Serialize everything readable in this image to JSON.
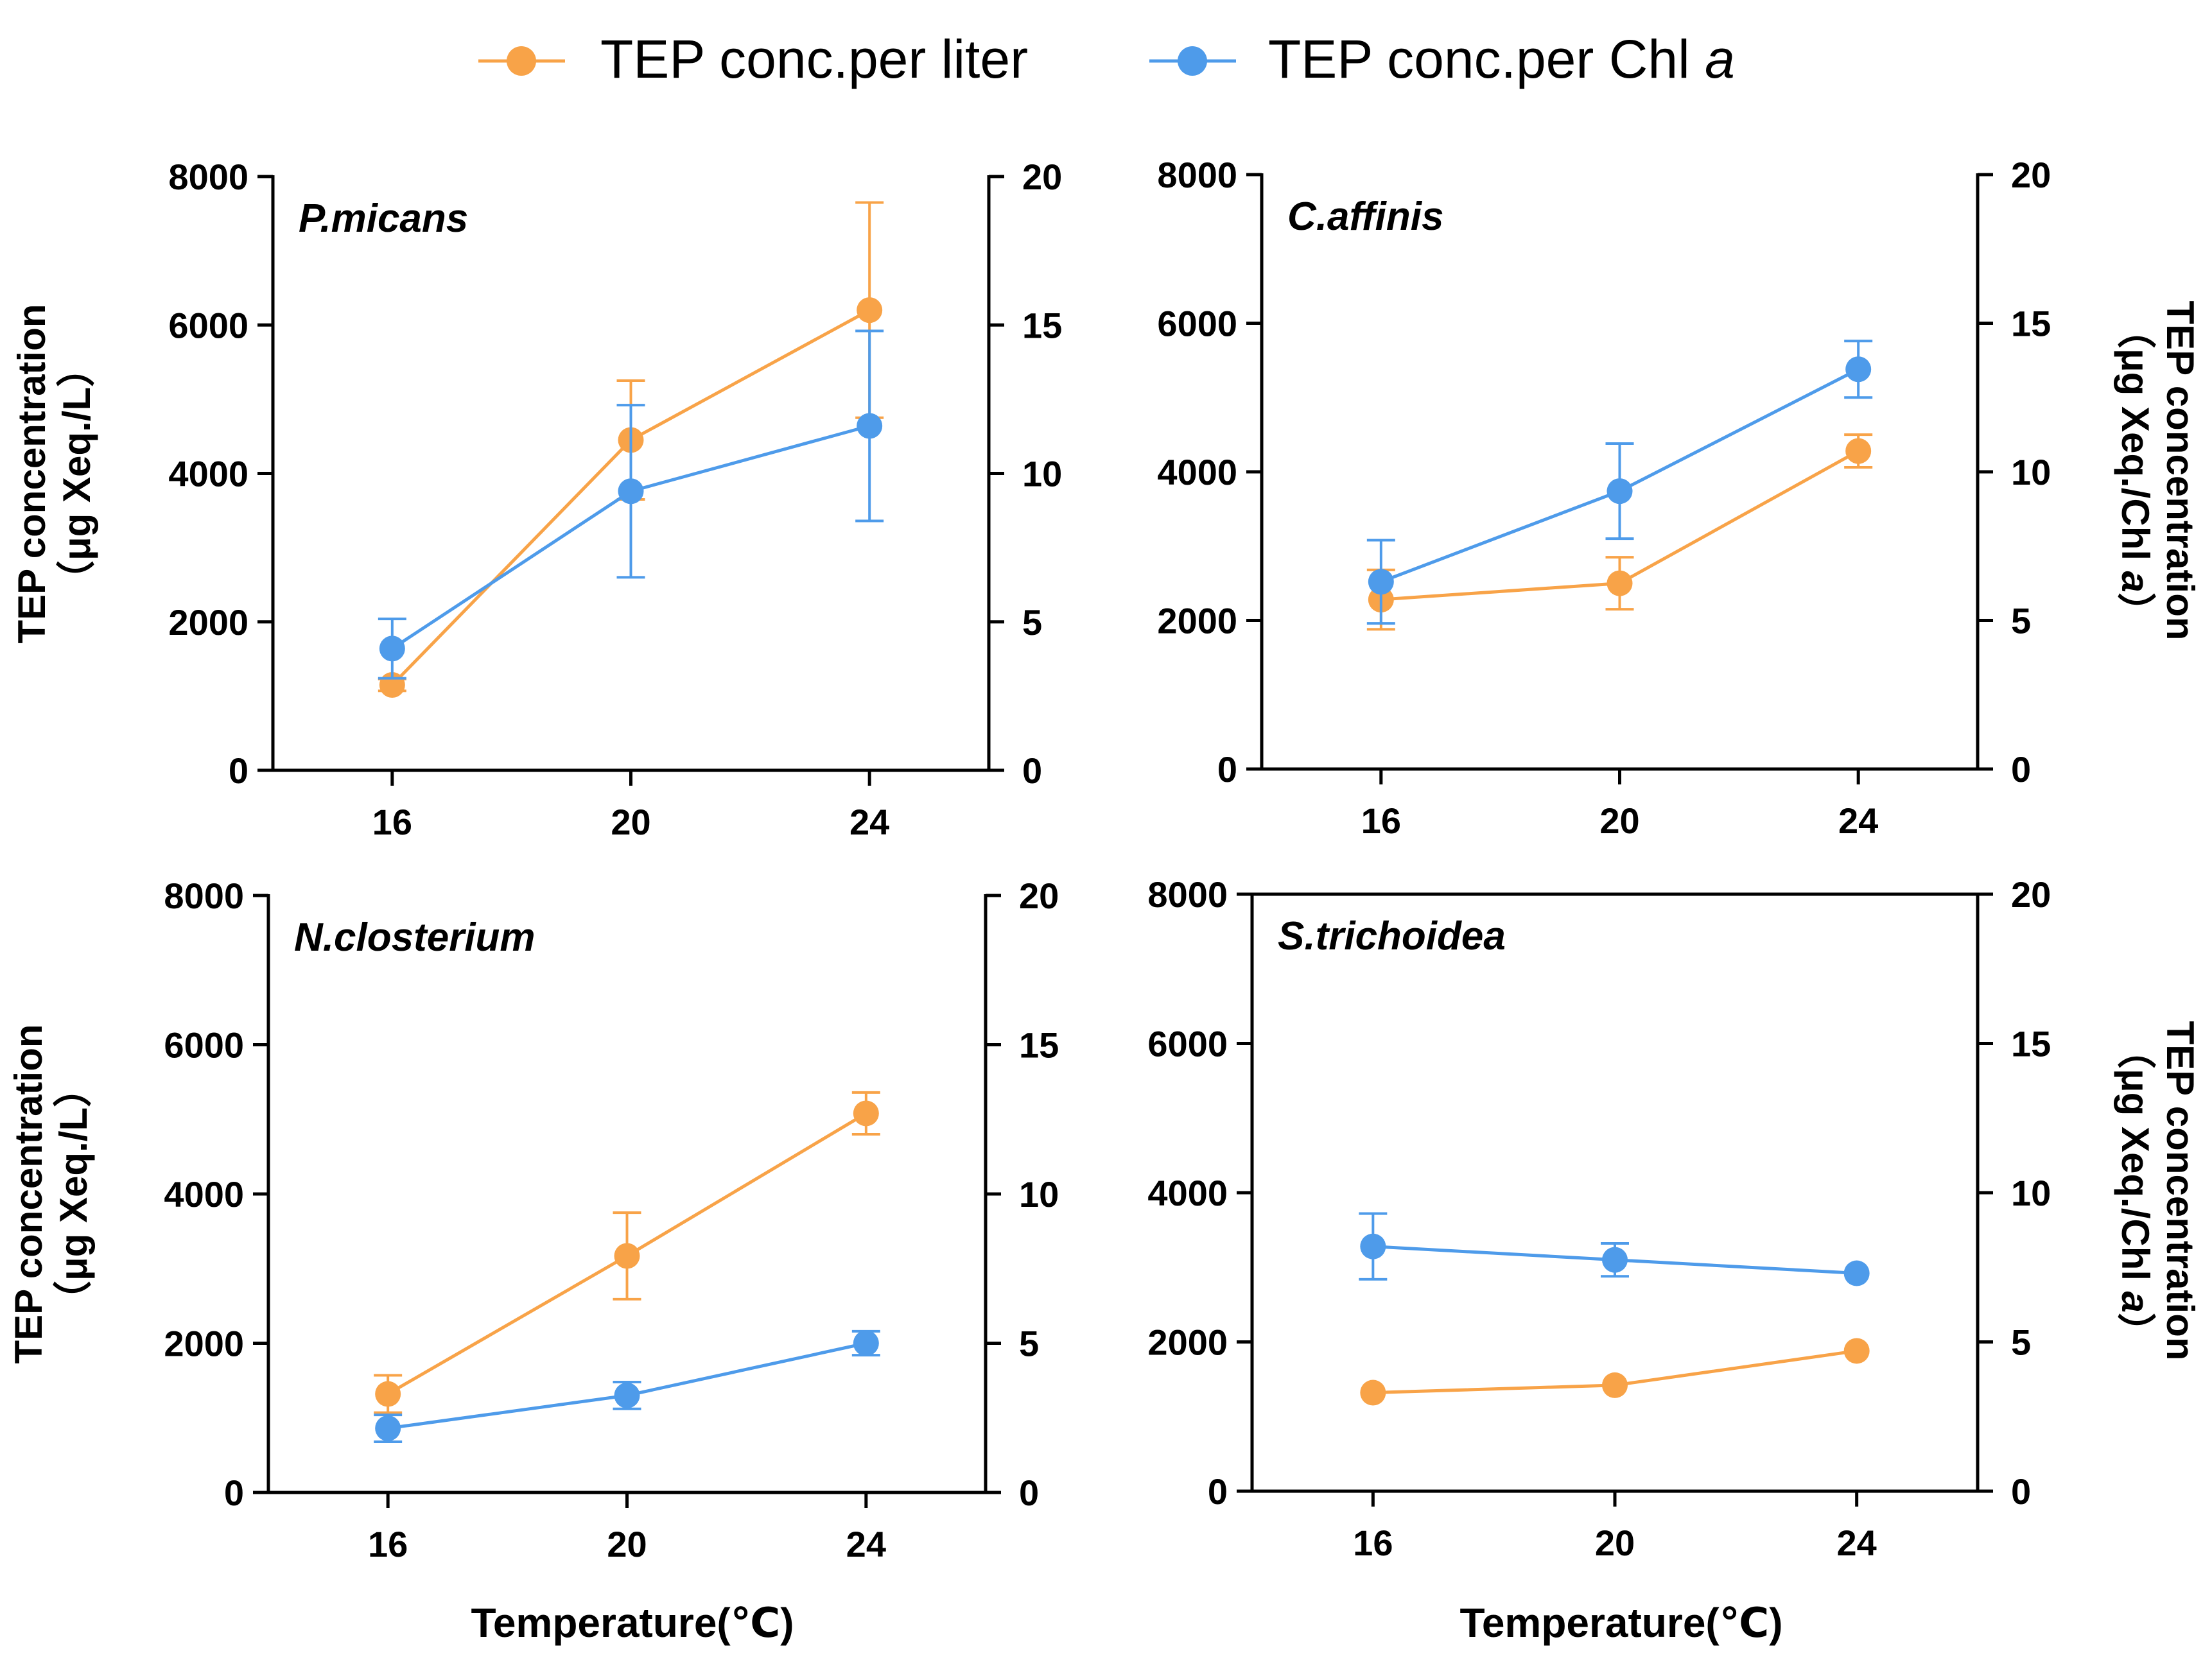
{
  "legend": {
    "items": [
      {
        "key": "per_liter",
        "label": "TEP conc.per liter",
        "color": "#F8A348"
      },
      {
        "key": "per_chl",
        "label": "TEP conc.per Chl ",
        "label_italic": "a",
        "color": "#4E9BEA"
      }
    ]
  },
  "axes_text": {
    "left_ylabel_line1": "TEP concentration",
    "left_ylabel_line2": "（μg Xeq./L）",
    "right_ylabel_line1": "TEP concentration",
    "right_ylabel_line2_prefix": "（μg Xeq./Chl ",
    "right_ylabel_line2_italic": "a",
    "right_ylabel_line2_suffix": "）",
    "xlabel": "Temperature(℃)"
  },
  "chart_data": [
    {
      "type": "line",
      "title": "P.micans",
      "categories": [
        "16",
        "20",
        "24"
      ],
      "x": [
        16,
        20,
        24
      ],
      "xlim": [
        14,
        26
      ],
      "ylim_left": [
        0,
        8000
      ],
      "ylim_right": [
        0,
        20
      ],
      "yticks_left": [
        "0",
        "2000",
        "4000",
        "6000",
        "8000"
      ],
      "yticks_right": [
        "0",
        "5",
        "10",
        "15",
        "20"
      ],
      "series": [
        {
          "name": "TEP conc.per liter",
          "axis": "left",
          "values": [
            1150,
            4450,
            6200
          ],
          "err": [
            80,
            800,
            1450
          ]
        },
        {
          "name": "TEP conc.per Chl a",
          "axis": "right",
          "values": [
            4.1,
            9.4,
            11.6
          ],
          "err": [
            1.0,
            2.9,
            3.2
          ]
        }
      ]
    },
    {
      "type": "line",
      "title": "C.affinis",
      "categories": [
        "16",
        "20",
        "24"
      ],
      "x": [
        16,
        20,
        24
      ],
      "xlim": [
        14,
        26
      ],
      "ylim_left": [
        0,
        8000
      ],
      "ylim_right": [
        0,
        20
      ],
      "yticks_left": [
        "0",
        "2000",
        "4000",
        "6000",
        "8000"
      ],
      "yticks_right": [
        "0",
        "5",
        "10",
        "15",
        "20"
      ],
      "series": [
        {
          "name": "TEP conc.per liter",
          "axis": "left",
          "values": [
            2280,
            2500,
            4280
          ],
          "err": [
            400,
            350,
            220
          ]
        },
        {
          "name": "TEP conc.per Chl a",
          "axis": "right",
          "values": [
            6.3,
            9.35,
            13.45
          ],
          "err": [
            1.4,
            1.6,
            0.95
          ]
        }
      ]
    },
    {
      "type": "line",
      "title": "N.closterium",
      "categories": [
        "16",
        "20",
        "24"
      ],
      "x": [
        16,
        20,
        24
      ],
      "xlim": [
        14,
        26
      ],
      "ylim_left": [
        0,
        8000
      ],
      "ylim_right": [
        0,
        20
      ],
      "yticks_left": [
        "0",
        "2000",
        "4000",
        "6000",
        "8000"
      ],
      "yticks_right": [
        "0",
        "5",
        "10",
        "15",
        "20"
      ],
      "series": [
        {
          "name": "TEP conc.per liter",
          "axis": "left",
          "values": [
            1320,
            3170,
            5080
          ],
          "err": [
            250,
            580,
            280
          ]
        },
        {
          "name": "TEP conc.per Chl a",
          "axis": "right",
          "values": [
            2.15,
            3.25,
            5.0
          ],
          "err": [
            0.45,
            0.45,
            0.4
          ]
        }
      ]
    },
    {
      "type": "line",
      "title": "S.trichoidea",
      "categories": [
        "16",
        "20",
        "24"
      ],
      "x": [
        16,
        20,
        24
      ],
      "xlim": [
        14,
        26
      ],
      "ylim_left": [
        0,
        8000
      ],
      "ylim_right": [
        0,
        20
      ],
      "yticks_left": [
        "0",
        "2000",
        "4000",
        "6000",
        "8000"
      ],
      "yticks_right": [
        "0",
        "5",
        "10",
        "15",
        "20"
      ],
      "series": [
        {
          "name": "TEP conc.per liter",
          "axis": "left",
          "values": [
            1320,
            1420,
            1880
          ],
          "err": [
            0,
            0,
            0
          ]
        },
        {
          "name": "TEP conc.per Chl a",
          "axis": "right",
          "values": [
            8.2,
            7.75,
            7.3
          ],
          "err": [
            1.1,
            0.55,
            0
          ]
        }
      ]
    }
  ]
}
